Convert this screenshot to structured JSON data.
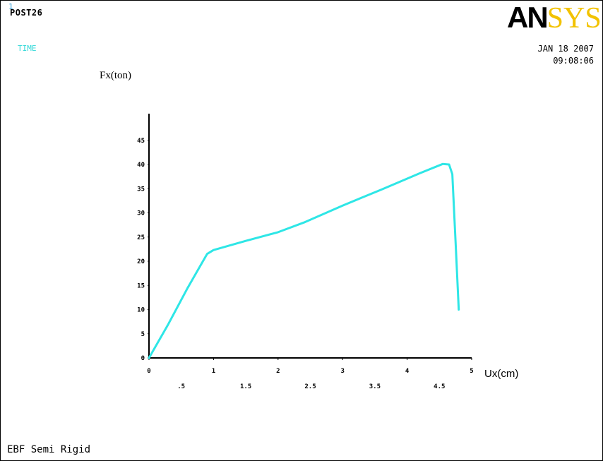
{
  "header": {
    "window_number": "1",
    "processor": "POST26",
    "time_variable": "TIME",
    "logo_part1": "AN",
    "logo_part2": "SYS",
    "date": "JAN 18 2007",
    "time": "09:08:06"
  },
  "footer": {
    "caption": "EBF Semi Rigid"
  },
  "colors": {
    "curve": "#2ee6e6",
    "axis": "#000000",
    "logo_accent": "#f2c200",
    "label_cyan": "#30d8d8"
  },
  "chart_data": {
    "type": "line",
    "title": "",
    "xlabel": "Ux(cm)",
    "ylabel": "Fx(ton)",
    "xlim": [
      0,
      5
    ],
    "ylim": [
      0,
      50
    ],
    "x_ticks_major": [
      "0",
      "1",
      "2",
      "3",
      "4",
      "5"
    ],
    "x_ticks_minor": [
      ".5",
      "1.5",
      "2.5",
      "3.5",
      "4.5"
    ],
    "y_ticks": [
      "0",
      "5",
      "10",
      "15",
      "20",
      "25",
      "30",
      "35",
      "40",
      "45"
    ],
    "grid": false,
    "series": [
      {
        "x": [
          0,
          0.3,
          0.6,
          0.9,
          1.0,
          1.5,
          2.0,
          2.4,
          3.0,
          3.6,
          4.2,
          4.55,
          4.65,
          4.7,
          4.75,
          4.8
        ],
        "y": [
          0,
          7,
          14.5,
          21.5,
          22.3,
          24.2,
          26,
          28,
          31.5,
          34.8,
          38.2,
          40.1,
          40,
          38,
          24,
          10
        ]
      }
    ]
  }
}
